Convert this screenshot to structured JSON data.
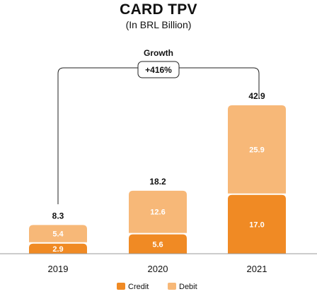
{
  "title": "CARD TPV",
  "subtitle": "(In BRL Billion)",
  "growth": {
    "label": "Growth",
    "value": "+416%"
  },
  "colors": {
    "credit": "#f08a24",
    "debit": "#f7b878",
    "axis": "#999999"
  },
  "chart_data": {
    "type": "bar",
    "stacked": true,
    "categories": [
      "2019",
      "2020",
      "2021"
    ],
    "series": [
      {
        "name": "Credit",
        "values": [
          2.9,
          5.6,
          17.0
        ],
        "labels": [
          "2.9",
          "5.6",
          "17.0"
        ]
      },
      {
        "name": "Debit",
        "values": [
          5.4,
          12.6,
          25.9
        ],
        "labels": [
          "5.4",
          "12.6",
          "25.9"
        ]
      }
    ],
    "totals": [
      8.3,
      18.2,
      42.9
    ],
    "total_labels": [
      "8.3",
      "18.2",
      "42.9"
    ],
    "title": "CARD TPV",
    "subtitle": "(In BRL Billion)",
    "legend_position": "bottom"
  }
}
